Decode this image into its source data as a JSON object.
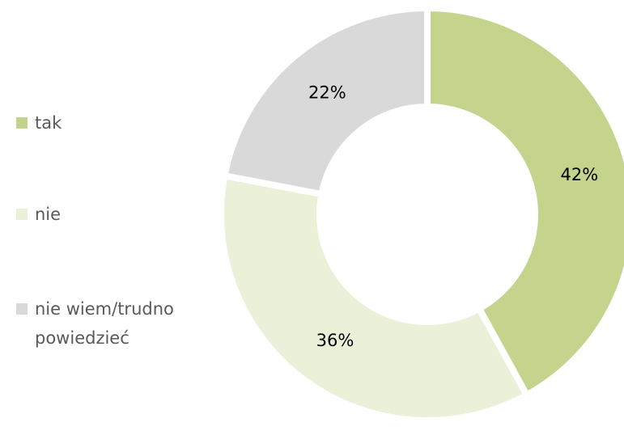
{
  "chart_data": {
    "type": "donut",
    "categories": [
      "tak",
      "nie",
      "nie wiem/trudno powiedzieć"
    ],
    "values": [
      42,
      36,
      22
    ],
    "value_labels": [
      "42%",
      "36%",
      "22%"
    ],
    "colors": [
      "#c5d48c",
      "#ebf0d8",
      "#d9d9d9"
    ],
    "legend": "left"
  }
}
